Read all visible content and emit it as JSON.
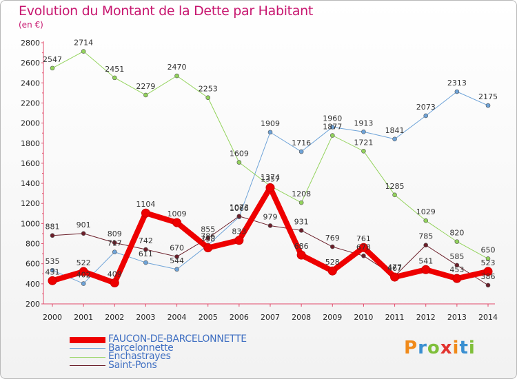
{
  "title": "Evolution du Montant de la Dette par Habitant",
  "subtitle": "(en €)",
  "logo": {
    "letters": [
      "P",
      "r",
      "o",
      "x",
      "i",
      "t",
      "i"
    ],
    "colors": [
      "#f08a1a",
      "#3a8fd1",
      "#7fbf3a",
      "#e2332f",
      "#f08a1a",
      "#3a8fd1",
      "#7fbf3a"
    ]
  },
  "chart_data": {
    "type": "line",
    "title": "Evolution du Montant de la Dette par Habitant",
    "subtitle": "(en €)",
    "xlabel": "",
    "ylabel": "",
    "ylim": [
      200,
      2800
    ],
    "yticks": [
      200,
      400,
      600,
      800,
      1000,
      1200,
      1400,
      1600,
      1800,
      2000,
      2200,
      2400,
      2600,
      2800
    ],
    "grid": false,
    "legend_position": "bottom-left",
    "x": [
      "2000",
      "2001",
      "2002",
      "2003",
      "2004",
      "2005",
      "2006",
      "2007",
      "2008",
      "2009",
      "2010",
      "2011",
      "2012",
      "2013",
      "2014"
    ],
    "series": [
      {
        "name": "FAUCON-DE-BARCELONNETTE",
        "color": "#ee0000",
        "width": 8,
        "marker": 6,
        "values": [
          431,
          522,
          409,
          1104,
          1009,
          758,
          833,
          1357,
          686,
          528,
          761,
          467,
          541,
          453,
          523
        ]
      },
      {
        "name": "Barcelonnette",
        "color": "#6ea3d8",
        "width": 1,
        "marker": 3,
        "values": [
          535,
          402,
          717,
          611,
          544,
          786,
          1066,
          1909,
          1716,
          1960,
          1913,
          1841,
          2073,
          2313,
          2175
        ]
      },
      {
        "name": "Enchastrayes",
        "color": "#93d35c",
        "width": 1,
        "marker": 3,
        "values": [
          2547,
          2714,
          2451,
          2279,
          2470,
          2253,
          1609,
          1374,
          1208,
          1877,
          1721,
          1285,
          1029,
          820,
          650
        ]
      },
      {
        "name": "Saint-Pons",
        "color": "#6b1f2a",
        "width": 1,
        "marker": 3,
        "values": [
          881,
          901,
          809,
          742,
          670,
          855,
          1073,
          979,
          931,
          769,
          678,
          477,
          785,
          585,
          386
        ]
      }
    ]
  }
}
